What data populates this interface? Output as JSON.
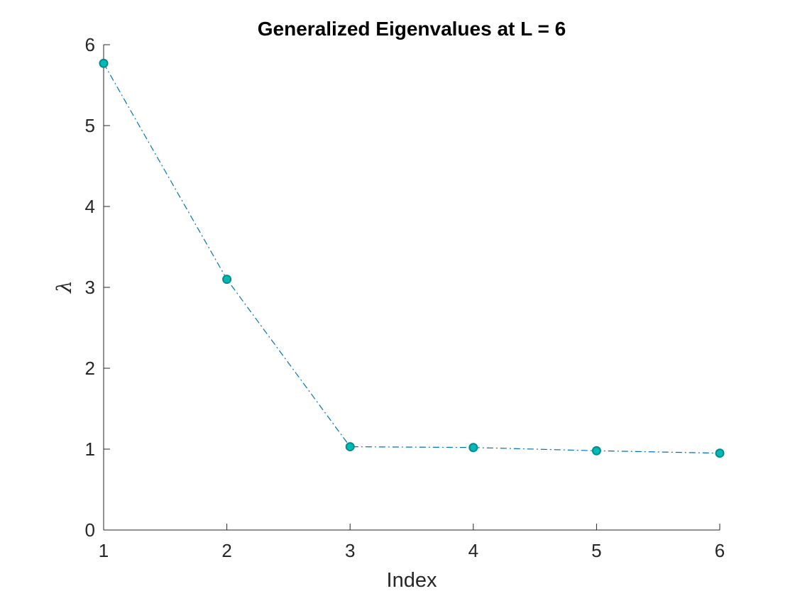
{
  "chart_data": {
    "type": "line",
    "title": "Generalized Eigenvalues at L = 6",
    "xlabel": "Index",
    "ylabel": "λ",
    "x": [
      1,
      2,
      3,
      4,
      5,
      6
    ],
    "xlim": [
      1,
      6
    ],
    "ylim": [
      0,
      6
    ],
    "xticks": [
      "1",
      "2",
      "3",
      "4",
      "5",
      "6"
    ],
    "yticks": [
      "0",
      "1",
      "2",
      "3",
      "4",
      "5",
      "6"
    ],
    "grid": false,
    "legend": "none",
    "series": [
      {
        "values": [
          5.77,
          3.1,
          1.03,
          1.02,
          0.98,
          0.95
        ],
        "line_style": "dash-dot",
        "line_color": "#0072BD",
        "marker": "circle",
        "marker_face_color": "#00B8B8",
        "marker_edge_color": "#008C8C"
      }
    ],
    "axis_color": "#262626"
  }
}
